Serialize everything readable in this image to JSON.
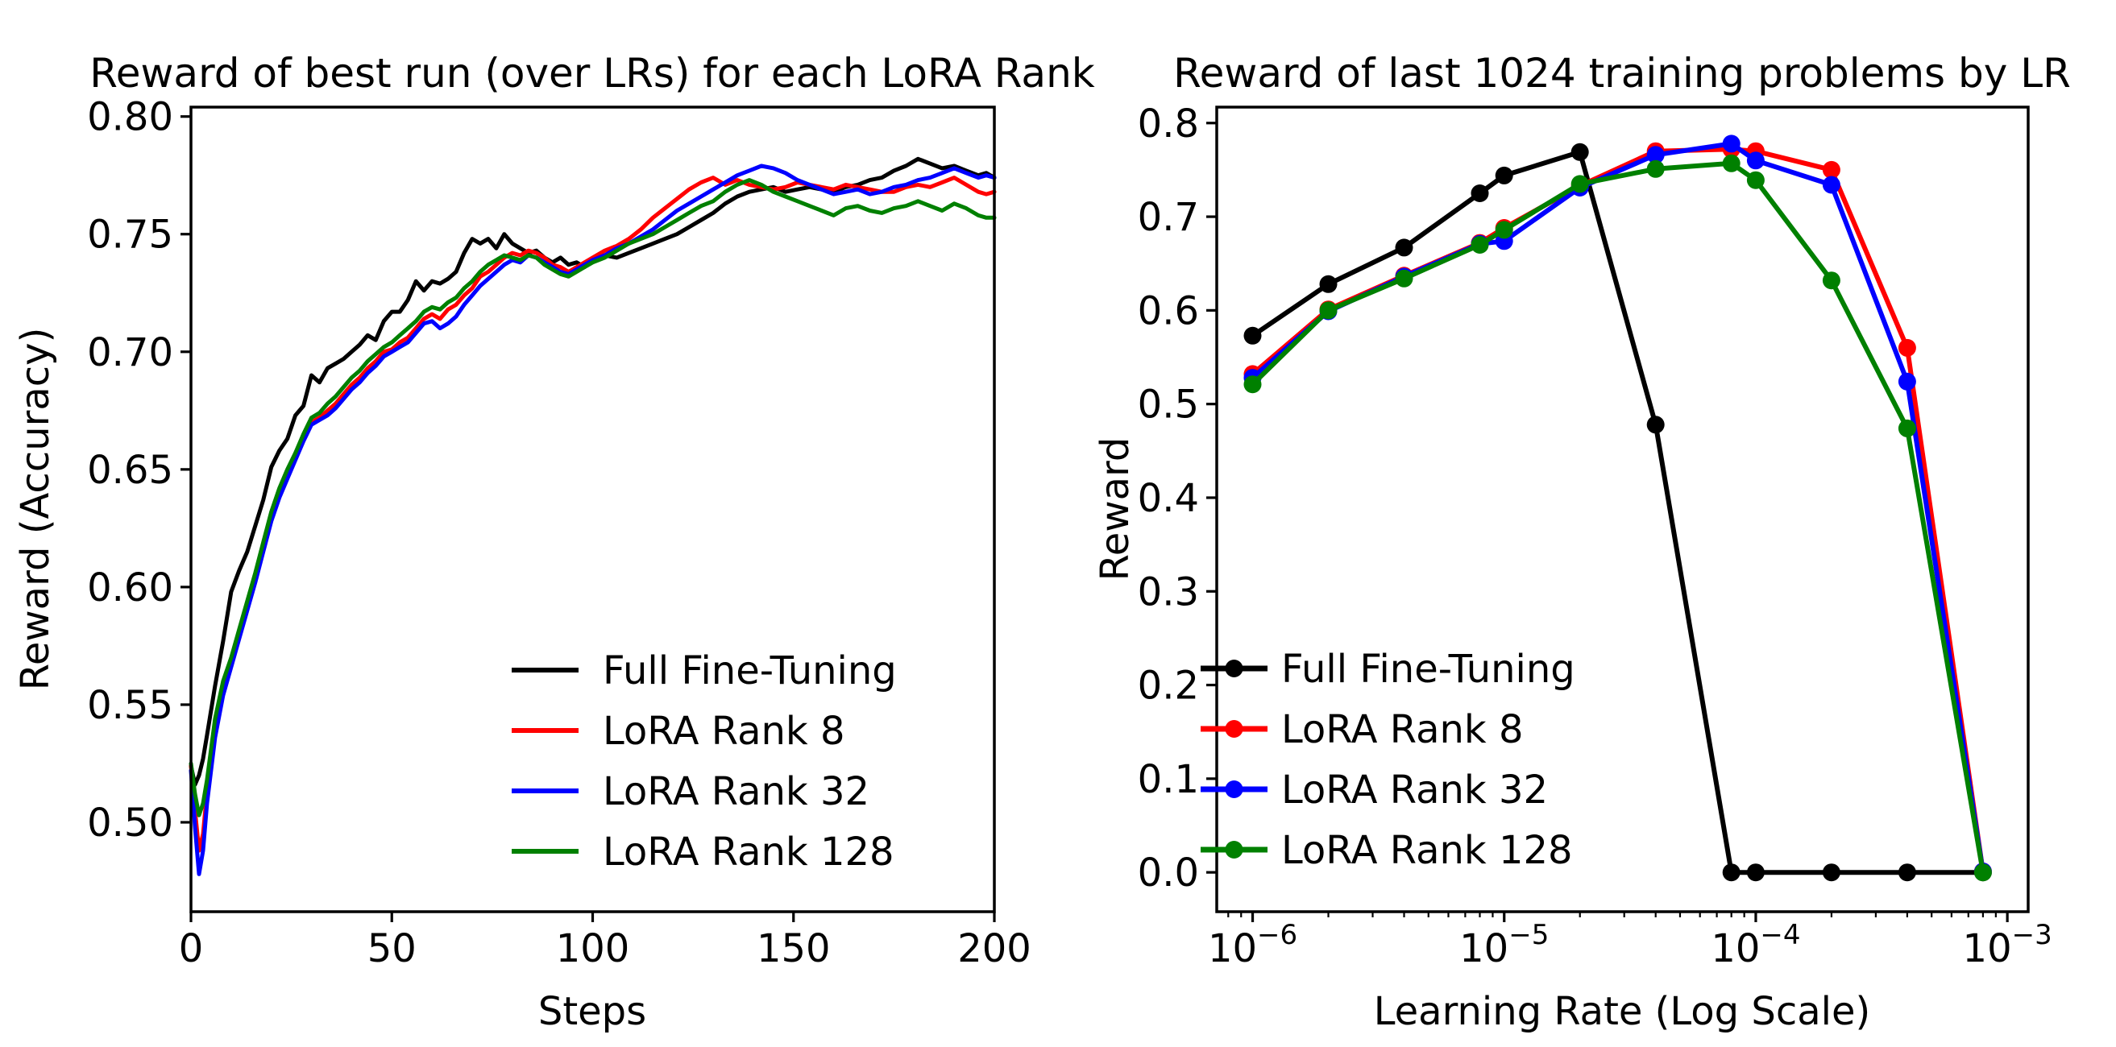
{
  "figure": {
    "background": "#ffffff",
    "text_color": "#000000"
  },
  "chart_data": [
    {
      "id": "best-run-per-rank",
      "type": "line",
      "title": "Reward of best run (over LRs) for each LoRA Rank",
      "xlabel": "Steps",
      "ylabel": "Reward (Accuracy)",
      "xscale": "linear",
      "grid": false,
      "markers": false,
      "legend": {
        "location": "lower right",
        "frame": false
      },
      "xlim": [
        0,
        200
      ],
      "ylim": [
        0.462,
        0.804
      ],
      "xticks": {
        "values": [
          0,
          50,
          100,
          150,
          200
        ],
        "labels": [
          "0",
          "50",
          "100",
          "150",
          "200"
        ]
      },
      "yticks": {
        "values": [
          0.5,
          0.55,
          0.6,
          0.65,
          0.7,
          0.75,
          0.8
        ],
        "labels": [
          "0.50",
          "0.55",
          "0.60",
          "0.65",
          "0.70",
          "0.75",
          "0.80"
        ]
      },
      "x": [
        0,
        1,
        2,
        3,
        4,
        6,
        8,
        10,
        12,
        14,
        16,
        18,
        20,
        22,
        24,
        26,
        28,
        30,
        32,
        34,
        36,
        38,
        40,
        42,
        44,
        46,
        48,
        50,
        52,
        54,
        56,
        58,
        60,
        62,
        64,
        66,
        68,
        70,
        72,
        74,
        76,
        78,
        80,
        82,
        84,
        86,
        88,
        90,
        92,
        94,
        96,
        98,
        100,
        103,
        106,
        109,
        112,
        115,
        118,
        121,
        124,
        127,
        130,
        133,
        136,
        139,
        142,
        145,
        148,
        151,
        154,
        157,
        160,
        163,
        166,
        169,
        172,
        175,
        178,
        181,
        184,
        187,
        190,
        193,
        196,
        198,
        200
      ],
      "series": [
        {
          "name": "Full Fine-Tuning",
          "color": "#000000",
          "values": [
            0.524,
            0.516,
            0.52,
            0.527,
            0.537,
            0.558,
            0.577,
            0.598,
            0.607,
            0.615,
            0.626,
            0.637,
            0.651,
            0.658,
            0.663,
            0.673,
            0.677,
            0.69,
            0.687,
            0.693,
            0.695,
            0.697,
            0.7,
            0.703,
            0.707,
            0.705,
            0.713,
            0.717,
            0.717,
            0.722,
            0.73,
            0.726,
            0.73,
            0.729,
            0.731,
            0.734,
            0.742,
            0.748,
            0.746,
            0.748,
            0.744,
            0.75,
            0.746,
            0.744,
            0.742,
            0.743,
            0.74,
            0.738,
            0.74,
            0.737,
            0.738,
            0.736,
            0.739,
            0.741,
            0.74,
            0.742,
            0.744,
            0.746,
            0.748,
            0.75,
            0.753,
            0.756,
            0.759,
            0.763,
            0.766,
            0.768,
            0.769,
            0.77,
            0.768,
            0.769,
            0.77,
            0.769,
            0.768,
            0.77,
            0.771,
            0.773,
            0.774,
            0.777,
            0.779,
            0.782,
            0.78,
            0.778,
            0.779,
            0.777,
            0.775,
            0.776,
            0.774
          ]
        },
        {
          "name": "LoRA Rank 8",
          "color": "#ff0000",
          "values": [
            0.524,
            0.505,
            0.488,
            0.495,
            0.513,
            0.54,
            0.557,
            0.568,
            0.58,
            0.592,
            0.604,
            0.617,
            0.63,
            0.64,
            0.648,
            0.655,
            0.663,
            0.67,
            0.672,
            0.675,
            0.678,
            0.682,
            0.686,
            0.689,
            0.693,
            0.696,
            0.7,
            0.701,
            0.704,
            0.706,
            0.71,
            0.714,
            0.716,
            0.714,
            0.718,
            0.72,
            0.724,
            0.727,
            0.732,
            0.734,
            0.737,
            0.74,
            0.742,
            0.741,
            0.743,
            0.742,
            0.74,
            0.737,
            0.736,
            0.734,
            0.736,
            0.738,
            0.74,
            0.743,
            0.745,
            0.748,
            0.752,
            0.757,
            0.761,
            0.765,
            0.769,
            0.772,
            0.774,
            0.771,
            0.773,
            0.771,
            0.77,
            0.769,
            0.77,
            0.772,
            0.771,
            0.77,
            0.769,
            0.771,
            0.77,
            0.769,
            0.768,
            0.768,
            0.77,
            0.771,
            0.77,
            0.772,
            0.774,
            0.771,
            0.768,
            0.767,
            0.768
          ]
        },
        {
          "name": "LoRA Rank 32",
          "color": "#0000ff",
          "values": [
            0.522,
            0.498,
            0.478,
            0.488,
            0.508,
            0.536,
            0.554,
            0.566,
            0.578,
            0.59,
            0.602,
            0.615,
            0.628,
            0.638,
            0.646,
            0.654,
            0.662,
            0.669,
            0.671,
            0.673,
            0.676,
            0.68,
            0.684,
            0.687,
            0.691,
            0.694,
            0.698,
            0.7,
            0.702,
            0.704,
            0.708,
            0.712,
            0.713,
            0.71,
            0.712,
            0.715,
            0.72,
            0.724,
            0.728,
            0.731,
            0.734,
            0.737,
            0.739,
            0.738,
            0.741,
            0.74,
            0.738,
            0.736,
            0.734,
            0.733,
            0.735,
            0.737,
            0.739,
            0.741,
            0.744,
            0.746,
            0.749,
            0.752,
            0.756,
            0.76,
            0.763,
            0.766,
            0.769,
            0.772,
            0.775,
            0.777,
            0.779,
            0.778,
            0.776,
            0.773,
            0.771,
            0.769,
            0.767,
            0.768,
            0.769,
            0.767,
            0.768,
            0.77,
            0.771,
            0.773,
            0.774,
            0.776,
            0.778,
            0.776,
            0.774,
            0.775,
            0.774
          ]
        },
        {
          "name": "LoRA Rank 128",
          "color": "#008000",
          "values": [
            0.525,
            0.512,
            0.503,
            0.508,
            0.518,
            0.544,
            0.56,
            0.57,
            0.582,
            0.594,
            0.606,
            0.619,
            0.632,
            0.642,
            0.65,
            0.657,
            0.665,
            0.672,
            0.674,
            0.678,
            0.681,
            0.685,
            0.689,
            0.692,
            0.696,
            0.699,
            0.702,
            0.704,
            0.707,
            0.71,
            0.713,
            0.717,
            0.719,
            0.718,
            0.721,
            0.723,
            0.727,
            0.73,
            0.734,
            0.737,
            0.739,
            0.741,
            0.74,
            0.739,
            0.741,
            0.74,
            0.737,
            0.735,
            0.733,
            0.732,
            0.734,
            0.736,
            0.738,
            0.74,
            0.743,
            0.746,
            0.748,
            0.75,
            0.753,
            0.756,
            0.759,
            0.762,
            0.764,
            0.768,
            0.771,
            0.773,
            0.771,
            0.768,
            0.766,
            0.764,
            0.762,
            0.76,
            0.758,
            0.761,
            0.762,
            0.76,
            0.759,
            0.761,
            0.762,
            0.764,
            0.762,
            0.76,
            0.763,
            0.761,
            0.758,
            0.757,
            0.757
          ]
        }
      ]
    },
    {
      "id": "reward-by-lr",
      "type": "line",
      "title": "Reward of last 1024 training problems by LR",
      "xlabel": "Learning Rate (Log Scale)",
      "ylabel": "Reward",
      "xscale": "log",
      "grid": false,
      "markers": true,
      "marker_style": "circle",
      "legend": {
        "location": "lower left",
        "frame": false
      },
      "xlim": [
        7.2e-07,
        0.00121
      ],
      "ylim": [
        -0.042,
        0.817
      ],
      "xticks": {
        "values": [
          1e-06,
          1e-05,
          0.0001,
          0.001
        ],
        "base": "10",
        "exps": [
          "−6",
          "−5",
          "−4",
          "−3"
        ]
      },
      "yticks": {
        "values": [
          0.0,
          0.1,
          0.2,
          0.3,
          0.4,
          0.5,
          0.6,
          0.7,
          0.8
        ],
        "labels": [
          "0.0",
          "0.1",
          "0.2",
          "0.3",
          "0.4",
          "0.5",
          "0.6",
          "0.7",
          "0.8"
        ]
      },
      "x": [
        1e-06,
        2e-06,
        4e-06,
        8e-06,
        1e-05,
        2e-05,
        4e-05,
        8e-05,
        0.0001,
        0.0002,
        0.0004,
        0.0008
      ],
      "series": [
        {
          "name": "Full Fine-Tuning",
          "color": "#000000",
          "values": [
            0.573,
            0.628,
            0.667,
            0.725,
            0.744,
            0.769,
            0.478,
            0.0,
            0.0,
            0.0,
            0.0,
            0.0
          ]
        },
        {
          "name": "LoRA Rank 8",
          "color": "#ff0000",
          "values": [
            0.532,
            0.601,
            0.637,
            0.672,
            0.688,
            0.733,
            0.77,
            0.772,
            0.77,
            0.75,
            0.56,
            0.001
          ]
        },
        {
          "name": "LoRA Rank 32",
          "color": "#0000ff",
          "values": [
            0.528,
            0.599,
            0.636,
            0.671,
            0.674,
            0.731,
            0.766,
            0.778,
            0.76,
            0.734,
            0.524,
            0.001
          ]
        },
        {
          "name": "LoRA Rank 128",
          "color": "#008000",
          "values": [
            0.521,
            0.6,
            0.634,
            0.67,
            0.686,
            0.735,
            0.751,
            0.757,
            0.739,
            0.632,
            0.474,
            0.0
          ]
        }
      ]
    }
  ]
}
